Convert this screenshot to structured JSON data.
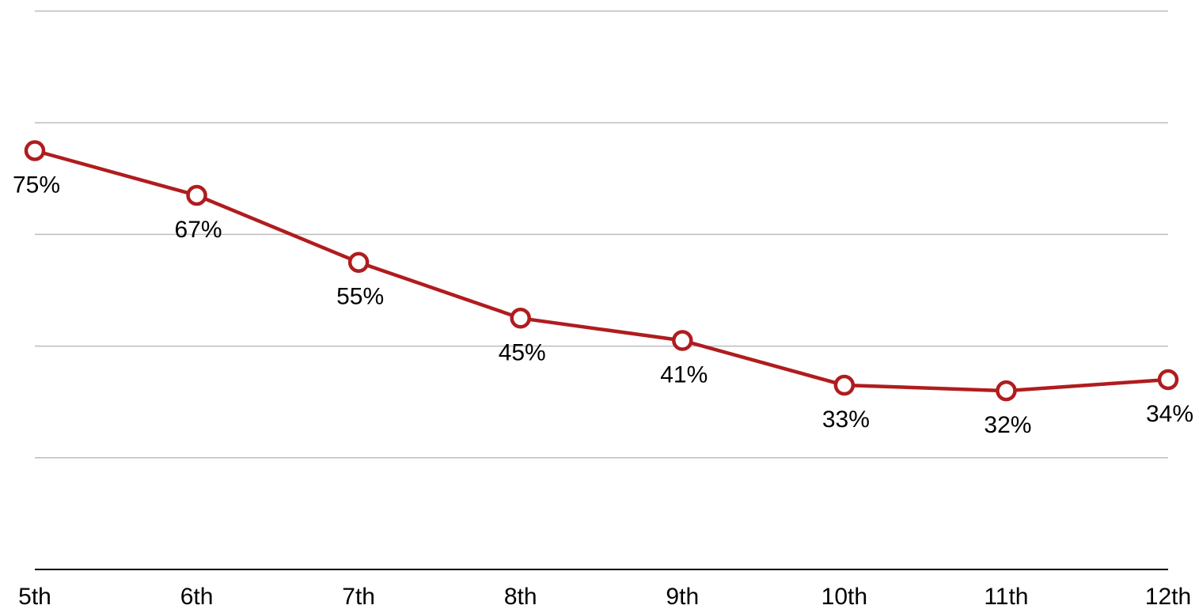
{
  "chart_data": {
    "type": "line",
    "categories": [
      "5th",
      "6th",
      "7th",
      "8th",
      "9th",
      "10th",
      "11th",
      "12th"
    ],
    "series": [
      {
        "values": [
          75,
          67,
          55,
          45,
          41,
          33,
          32,
          34
        ],
        "labels": [
          "75%",
          "67%",
          "55%",
          "45%",
          "41%",
          "33%",
          "32%",
          "34%"
        ],
        "color": "#b01c1e"
      }
    ],
    "ylim": [
      0,
      100
    ],
    "yticks": [
      0,
      20,
      40,
      60,
      80,
      100
    ],
    "grid": true,
    "legend": "none",
    "colors": {
      "line": "#b01c1e",
      "grid": "#bdbdbd",
      "axis": "#000000"
    }
  }
}
